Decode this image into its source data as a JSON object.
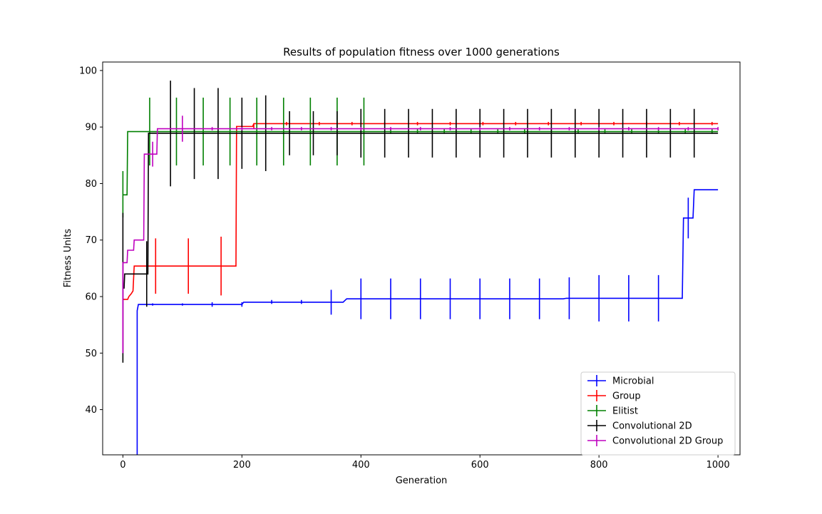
{
  "chart_data": {
    "type": "line",
    "title": "Results of population fitness over 1000 generations",
    "xlabel": "Generation",
    "ylabel": "Fitness Units",
    "xlim": [
      -34,
      1037
    ],
    "ylim": [
      32,
      101.5
    ],
    "xticks": [
      0,
      200,
      400,
      600,
      800,
      1000
    ],
    "yticks": [
      40,
      50,
      60,
      70,
      80,
      90,
      100
    ],
    "grid": false,
    "legend_position": "lower-right",
    "series": [
      {
        "name": "Microbial",
        "color": "#0000ff",
        "line": [
          [
            0,
            20
          ],
          [
            24,
            20
          ],
          [
            24,
            57.5
          ],
          [
            26,
            58.6
          ],
          [
            200,
            58.6
          ],
          [
            203,
            59.0
          ],
          [
            370,
            59.0
          ],
          [
            376,
            59.6
          ],
          [
            740,
            59.6
          ],
          [
            745,
            59.7
          ],
          [
            940,
            59.7
          ],
          [
            942,
            73.9
          ],
          [
            958,
            73.9
          ],
          [
            960,
            78.9
          ],
          [
            1000,
            78.9
          ]
        ],
        "errorbars": [
          {
            "x": 50,
            "y": 58.6,
            "lo": 58.4,
            "hi": 58.8
          },
          {
            "x": 100,
            "y": 58.6,
            "lo": 58.4,
            "hi": 58.8
          },
          {
            "x": 150,
            "y": 58.6,
            "lo": 58.2,
            "hi": 59.0
          },
          {
            "x": 200,
            "y": 58.6,
            "lo": 58.2,
            "hi": 59.0
          },
          {
            "x": 250,
            "y": 59.0,
            "lo": 58.7,
            "hi": 59.4
          },
          {
            "x": 300,
            "y": 59.0,
            "lo": 58.7,
            "hi": 59.4
          },
          {
            "x": 350,
            "y": 59.0,
            "lo": 56.8,
            "hi": 61.2
          },
          {
            "x": 400,
            "y": 59.6,
            "lo": 56.0,
            "hi": 63.2
          },
          {
            "x": 450,
            "y": 59.6,
            "lo": 56.0,
            "hi": 63.2
          },
          {
            "x": 500,
            "y": 59.6,
            "lo": 56.0,
            "hi": 63.2
          },
          {
            "x": 550,
            "y": 59.6,
            "lo": 56.0,
            "hi": 63.2
          },
          {
            "x": 600,
            "y": 59.6,
            "lo": 56.0,
            "hi": 63.2
          },
          {
            "x": 650,
            "y": 59.6,
            "lo": 56.0,
            "hi": 63.2
          },
          {
            "x": 700,
            "y": 59.6,
            "lo": 56.0,
            "hi": 63.2
          },
          {
            "x": 750,
            "y": 59.7,
            "lo": 56.0,
            "hi": 63.4
          },
          {
            "x": 800,
            "y": 59.7,
            "lo": 55.6,
            "hi": 63.8
          },
          {
            "x": 850,
            "y": 59.7,
            "lo": 55.6,
            "hi": 63.8
          },
          {
            "x": 900,
            "y": 59.7,
            "lo": 55.6,
            "hi": 63.8
          },
          {
            "x": 950,
            "y": 73.9,
            "lo": 70.3,
            "hi": 77.5
          }
        ]
      },
      {
        "name": "Group",
        "color": "#ff0000",
        "line": [
          [
            0,
            59.5
          ],
          [
            8,
            59.5
          ],
          [
            10,
            60.0
          ],
          [
            14,
            60.5
          ],
          [
            17,
            61.0
          ],
          [
            19,
            65.4
          ],
          [
            190,
            65.4
          ],
          [
            191,
            90.1
          ],
          [
            218,
            90.1
          ],
          [
            220,
            90.6
          ],
          [
            1000,
            90.6
          ]
        ],
        "errorbars": [
          {
            "x": 55,
            "y": 65.4,
            "lo": 60.5,
            "hi": 70.3
          },
          {
            "x": 110,
            "y": 65.4,
            "lo": 60.5,
            "hi": 70.3
          },
          {
            "x": 165,
            "y": 65.4,
            "lo": 60.2,
            "hi": 70.6
          },
          {
            "x": 220,
            "y": 90.1,
            "lo": 89.7,
            "hi": 90.5
          },
          {
            "x": 275,
            "y": 90.6,
            "lo": 90.3,
            "hi": 90.9
          },
          {
            "x": 330,
            "y": 90.6,
            "lo": 90.3,
            "hi": 90.9
          },
          {
            "x": 385,
            "y": 90.6,
            "lo": 90.3,
            "hi": 90.9
          },
          {
            "x": 440,
            "y": 90.6,
            "lo": 90.3,
            "hi": 90.9
          },
          {
            "x": 495,
            "y": 90.6,
            "lo": 90.3,
            "hi": 90.9
          },
          {
            "x": 550,
            "y": 90.6,
            "lo": 90.3,
            "hi": 90.9
          },
          {
            "x": 605,
            "y": 90.6,
            "lo": 90.3,
            "hi": 90.9
          },
          {
            "x": 660,
            "y": 90.6,
            "lo": 90.3,
            "hi": 90.9
          },
          {
            "x": 715,
            "y": 90.6,
            "lo": 90.3,
            "hi": 90.9
          },
          {
            "x": 770,
            "y": 90.6,
            "lo": 90.3,
            "hi": 90.9
          },
          {
            "x": 825,
            "y": 90.6,
            "lo": 90.3,
            "hi": 90.9
          },
          {
            "x": 880,
            "y": 90.6,
            "lo": 90.3,
            "hi": 90.9
          },
          {
            "x": 935,
            "y": 90.6,
            "lo": 90.3,
            "hi": 90.9
          },
          {
            "x": 990,
            "y": 90.6,
            "lo": 90.3,
            "hi": 90.9
          }
        ]
      },
      {
        "name": "Elitist",
        "color": "#008000",
        "line": [
          [
            0,
            78.0
          ],
          [
            7,
            78.0
          ],
          [
            8,
            89.2
          ],
          [
            1000,
            89.2
          ]
        ],
        "errorbars": [
          {
            "x": 0,
            "y": 78.0,
            "lo": 74.0,
            "hi": 82.2
          },
          {
            "x": 45,
            "y": 89.2,
            "lo": 83.2,
            "hi": 95.2
          },
          {
            "x": 90,
            "y": 89.2,
            "lo": 83.2,
            "hi": 95.2
          },
          {
            "x": 135,
            "y": 89.2,
            "lo": 83.2,
            "hi": 95.2
          },
          {
            "x": 180,
            "y": 89.2,
            "lo": 83.2,
            "hi": 95.2
          },
          {
            "x": 225,
            "y": 89.2,
            "lo": 83.2,
            "hi": 95.2
          },
          {
            "x": 270,
            "y": 89.2,
            "lo": 83.2,
            "hi": 95.2
          },
          {
            "x": 315,
            "y": 89.2,
            "lo": 83.2,
            "hi": 95.2
          },
          {
            "x": 360,
            "y": 89.2,
            "lo": 83.2,
            "hi": 95.2
          },
          {
            "x": 405,
            "y": 89.2,
            "lo": 83.2,
            "hi": 95.2
          },
          {
            "x": 450,
            "y": 89.2,
            "lo": 88.8,
            "hi": 89.6
          },
          {
            "x": 495,
            "y": 89.2,
            "lo": 88.8,
            "hi": 89.6
          },
          {
            "x": 540,
            "y": 89.2,
            "lo": 88.8,
            "hi": 89.6
          },
          {
            "x": 585,
            "y": 89.2,
            "lo": 88.8,
            "hi": 89.6
          },
          {
            "x": 630,
            "y": 89.2,
            "lo": 88.8,
            "hi": 89.6
          },
          {
            "x": 675,
            "y": 89.2,
            "lo": 88.8,
            "hi": 89.6
          },
          {
            "x": 720,
            "y": 89.2,
            "lo": 88.8,
            "hi": 89.6
          },
          {
            "x": 765,
            "y": 89.2,
            "lo": 88.8,
            "hi": 89.6
          },
          {
            "x": 810,
            "y": 89.2,
            "lo": 88.8,
            "hi": 89.6
          },
          {
            "x": 855,
            "y": 89.2,
            "lo": 88.8,
            "hi": 89.6
          },
          {
            "x": 900,
            "y": 89.2,
            "lo": 88.8,
            "hi": 89.6
          },
          {
            "x": 945,
            "y": 89.2,
            "lo": 88.8,
            "hi": 89.6
          },
          {
            "x": 990,
            "y": 89.2,
            "lo": 88.8,
            "hi": 89.6
          }
        ]
      },
      {
        "name": "Convolutional 2D",
        "color": "#000000",
        "line": [
          [
            0,
            61.5
          ],
          [
            2,
            61.5
          ],
          [
            3,
            64.0
          ],
          [
            42,
            64.0
          ],
          [
            43,
            88.9
          ],
          [
            1000,
            88.9
          ]
        ],
        "errorbars": [
          {
            "x": 0,
            "y": 61.5,
            "lo": 48.3,
            "hi": 74.8
          },
          {
            "x": 40,
            "y": 64.0,
            "lo": 58.2,
            "hi": 69.8
          },
          {
            "x": 80,
            "y": 88.9,
            "lo": 79.5,
            "hi": 98.2
          },
          {
            "x": 120,
            "y": 88.9,
            "lo": 80.8,
            "hi": 96.9
          },
          {
            "x": 160,
            "y": 88.9,
            "lo": 80.8,
            "hi": 96.9
          },
          {
            "x": 200,
            "y": 88.9,
            "lo": 82.6,
            "hi": 95.2
          },
          {
            "x": 240,
            "y": 88.9,
            "lo": 82.2,
            "hi": 95.6
          },
          {
            "x": 280,
            "y": 88.9,
            "lo": 85.0,
            "hi": 92.8
          },
          {
            "x": 320,
            "y": 88.9,
            "lo": 85.0,
            "hi": 92.8
          },
          {
            "x": 360,
            "y": 88.9,
            "lo": 85.0,
            "hi": 92.8
          },
          {
            "x": 400,
            "y": 88.9,
            "lo": 84.6,
            "hi": 93.2
          },
          {
            "x": 440,
            "y": 88.9,
            "lo": 84.6,
            "hi": 93.2
          },
          {
            "x": 480,
            "y": 88.9,
            "lo": 84.6,
            "hi": 93.2
          },
          {
            "x": 520,
            "y": 88.9,
            "lo": 84.6,
            "hi": 93.2
          },
          {
            "x": 560,
            "y": 88.9,
            "lo": 84.6,
            "hi": 93.2
          },
          {
            "x": 600,
            "y": 88.9,
            "lo": 84.6,
            "hi": 93.2
          },
          {
            "x": 640,
            "y": 88.9,
            "lo": 84.6,
            "hi": 93.2
          },
          {
            "x": 680,
            "y": 88.9,
            "lo": 84.6,
            "hi": 93.2
          },
          {
            "x": 720,
            "y": 88.9,
            "lo": 84.6,
            "hi": 93.2
          },
          {
            "x": 760,
            "y": 88.9,
            "lo": 84.6,
            "hi": 93.2
          },
          {
            "x": 800,
            "y": 88.9,
            "lo": 84.6,
            "hi": 93.2
          },
          {
            "x": 840,
            "y": 88.9,
            "lo": 84.6,
            "hi": 93.2
          },
          {
            "x": 880,
            "y": 88.9,
            "lo": 84.6,
            "hi": 93.2
          },
          {
            "x": 920,
            "y": 88.9,
            "lo": 84.6,
            "hi": 93.2
          },
          {
            "x": 960,
            "y": 88.9,
            "lo": 84.6,
            "hi": 93.2
          }
        ]
      },
      {
        "name": "Convolutional 2D Group",
        "color": "#bf00bf",
        "line": [
          [
            0,
            50.0
          ],
          [
            0,
            66.0
          ],
          [
            7,
            66.0
          ],
          [
            8,
            68.2
          ],
          [
            18,
            68.2
          ],
          [
            19,
            70.0
          ],
          [
            35,
            70.0
          ],
          [
            36,
            85.2
          ],
          [
            57,
            85.2
          ],
          [
            58,
            89.7
          ],
          [
            1000,
            89.7
          ]
        ],
        "errorbars": [
          {
            "x": 0,
            "y": 66.0,
            "lo": 50.0,
            "hi": 66.0
          },
          {
            "x": 50,
            "y": 85.2,
            "lo": 83.0,
            "hi": 87.4
          },
          {
            "x": 100,
            "y": 89.7,
            "lo": 87.4,
            "hi": 92.0
          },
          {
            "x": 150,
            "y": 89.7,
            "lo": 89.4,
            "hi": 90.0
          },
          {
            "x": 200,
            "y": 89.7,
            "lo": 89.4,
            "hi": 90.0
          },
          {
            "x": 250,
            "y": 89.7,
            "lo": 89.4,
            "hi": 90.0
          },
          {
            "x": 300,
            "y": 89.7,
            "lo": 89.4,
            "hi": 90.0
          },
          {
            "x": 350,
            "y": 89.7,
            "lo": 89.4,
            "hi": 90.0
          },
          {
            "x": 400,
            "y": 89.7,
            "lo": 89.4,
            "hi": 90.0
          },
          {
            "x": 450,
            "y": 89.7,
            "lo": 89.4,
            "hi": 90.0
          },
          {
            "x": 500,
            "y": 89.7,
            "lo": 89.4,
            "hi": 90.0
          },
          {
            "x": 550,
            "y": 89.7,
            "lo": 89.4,
            "hi": 90.0
          },
          {
            "x": 600,
            "y": 89.7,
            "lo": 89.4,
            "hi": 90.0
          },
          {
            "x": 650,
            "y": 89.7,
            "lo": 89.4,
            "hi": 90.0
          },
          {
            "x": 700,
            "y": 89.7,
            "lo": 89.4,
            "hi": 90.0
          },
          {
            "x": 750,
            "y": 89.7,
            "lo": 89.4,
            "hi": 90.0
          },
          {
            "x": 800,
            "y": 89.7,
            "lo": 89.4,
            "hi": 90.0
          },
          {
            "x": 850,
            "y": 89.7,
            "lo": 89.4,
            "hi": 90.0
          },
          {
            "x": 900,
            "y": 89.7,
            "lo": 89.4,
            "hi": 90.0
          },
          {
            "x": 950,
            "y": 89.7,
            "lo": 89.4,
            "hi": 90.0
          },
          {
            "x": 1000,
            "y": 89.7,
            "lo": 89.4,
            "hi": 90.0
          }
        ]
      }
    ]
  }
}
